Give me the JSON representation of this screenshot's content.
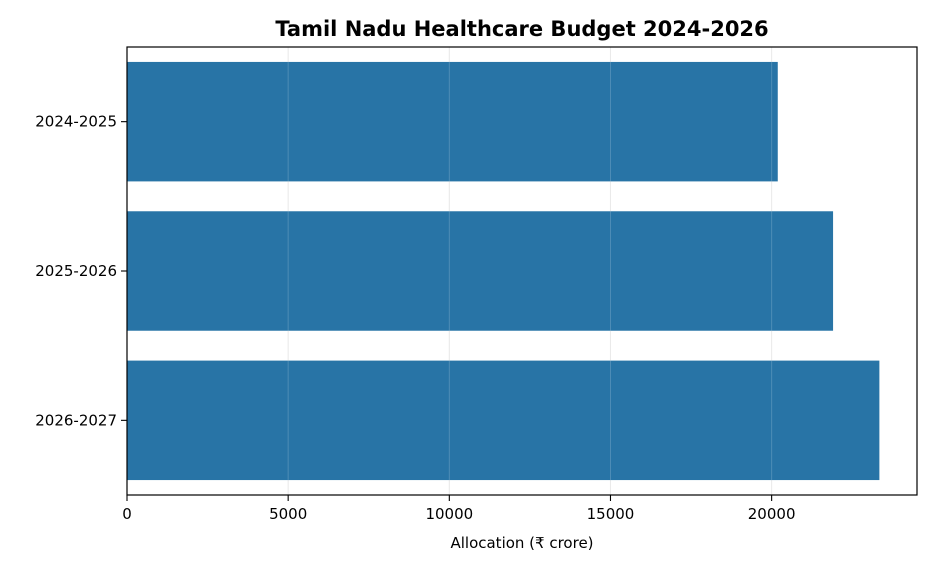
{
  "chart_data": {
    "type": "bar",
    "orientation": "horizontal",
    "title": "Tamil Nadu Healthcare Budget 2024-2026",
    "xlabel": "Allocation (₹ crore)",
    "ylabel": "",
    "categories": [
      "2024-2025",
      "2025-2026",
      "2026-2027"
    ],
    "values": [
      20190,
      21906,
      23343
    ],
    "xlim": [
      0,
      24510
    ],
    "xticks": [
      0,
      5000,
      10000,
      15000,
      20000
    ],
    "xtick_labels": [
      "0",
      "5000",
      "10000",
      "15000",
      "20000"
    ],
    "grid": "x-only",
    "legend": "none",
    "bar_color": "#2874a6",
    "grid_color": "#e5e5e5"
  }
}
